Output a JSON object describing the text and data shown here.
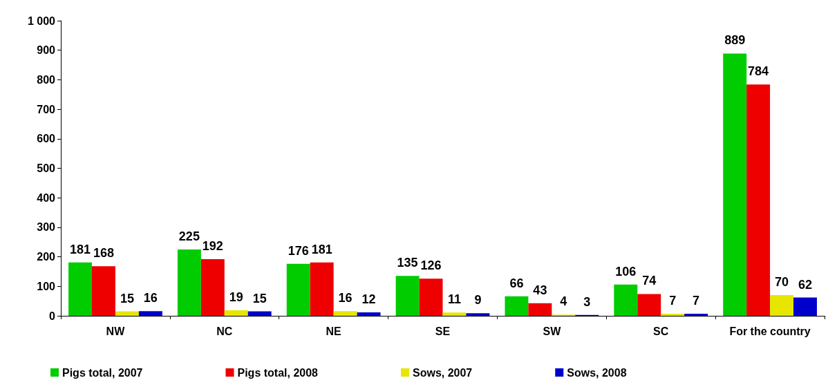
{
  "chart_data": {
    "type": "bar",
    "categories": [
      "NW",
      "NC",
      "NE",
      "SE",
      "SW",
      "SC",
      "For the country"
    ],
    "series": [
      {
        "name": "Pigs total, 2007",
        "color": "#00cc00",
        "values": [
          181,
          225,
          176,
          135,
          66,
          106,
          889
        ]
      },
      {
        "name": "Pigs total, 2008",
        "color": "#ee0000",
        "values": [
          168,
          192,
          181,
          126,
          43,
          74,
          784
        ]
      },
      {
        "name": "Sows, 2007",
        "color": "#e6e600",
        "values": [
          15,
          19,
          16,
          11,
          4,
          7,
          70
        ]
      },
      {
        "name": "Sows, 2008",
        "color": "#0000cc",
        "values": [
          16,
          15,
          12,
          9,
          3,
          7,
          62
        ]
      }
    ],
    "ylim": [
      0,
      1000
    ],
    "yticks": [
      0,
      100,
      200,
      300,
      400,
      500,
      600,
      700,
      800,
      900,
      {
        "value": 1000,
        "label": "1 000"
      }
    ],
    "grid": false,
    "legend": "bottom left",
    "data_labels": true
  }
}
